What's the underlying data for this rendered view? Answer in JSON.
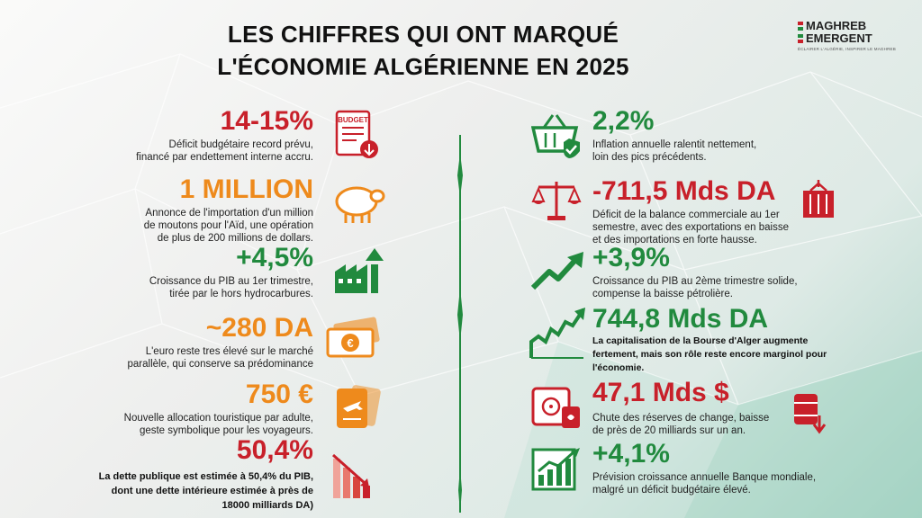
{
  "header": {
    "title_line1": "LES CHIFFRES QUI ONT MARQUÉ",
    "title_line2": "L'ÉCONOMIE ALGÉRIENNE EN 2025"
  },
  "logo": {
    "line1": "MAGHREB",
    "line2": "EMERGENT",
    "tagline": "ÉCLAIRER L'ALGÉRIE, INSPIRER LE MAGHREB"
  },
  "left": [
    {
      "value": "14-15%",
      "desc": [
        "Déficit budgétaire record prévu,",
        "financé par endettement interne accru."
      ],
      "icon": "budget-document-icon",
      "icon_label": "BUDGET",
      "color": "#c8202a"
    },
    {
      "value": "1 MILLION",
      "desc": [
        "Annonce de l'importation d'un million",
        "de moutons pour l'Aïd, une opération",
        "de plus de 200 millions de dollars."
      ],
      "icon": "sheep-icon",
      "color": "#ee8a1c"
    },
    {
      "value": "+4,5%",
      "desc": [
        "Croissance du PIB au 1er trimestre,",
        "tirée par le hors hydrocarbures."
      ],
      "icon": "factory-growth-icon",
      "color": "#218a3e"
    },
    {
      "value": "~280 DA",
      "desc": [
        "L'euro reste tres élevé sur le marché",
        "parallèle, qui conserve sa prédominance"
      ],
      "icon": "euro-banknotes-icon",
      "color": "#ee8a1c"
    },
    {
      "value": "750 €",
      "desc": [
        "Nouvelle allocation touristique par adulte,",
        "geste symbolique pour les voyageurs."
      ],
      "icon": "passport-plane-icon",
      "color": "#ee8a1c"
    },
    {
      "value": "50,4%",
      "desc": [
        "La dette publique est estimée à 50,4% du PIB,",
        "dont une dette intérieure estimée à près de",
        "18000 milliards DA)"
      ],
      "icon": "declining-bars-icon",
      "color": "#c8202a"
    }
  ],
  "right": [
    {
      "value": "2,2%",
      "desc": [
        "Inflation annuelle ralentit nettement,",
        "loin des pics précédents."
      ],
      "icon": "shopping-basket-check-icon",
      "color": "#218a3e"
    },
    {
      "value": "-711,5 Mds DA",
      "desc": [
        "Déficit de la balance commerciale au 1er",
        "semestre, avec des exportations en baisse",
        "et des importations en forte hausse."
      ],
      "icon": "scale-container-icon",
      "color": "#c8202a"
    },
    {
      "value": "+3,9%",
      "desc": [
        "Croissance du PIB au 2ème trimestre solide,",
        "compense la baisse pétrolière."
      ],
      "icon": "trend-up-arrow-icon",
      "color": "#218a3e"
    },
    {
      "value": "744,8 Mds DA",
      "desc": [
        "La capitalisation de la Bourse d'Alger augmente",
        "fertement, mais son rôle reste encore marginol pour",
        "l'économie."
      ],
      "icon": "stock-chart-arrow-icon",
      "color": "#218a3e"
    },
    {
      "value": "47,1 Mds $",
      "desc": [
        "Chute des réserves de change, baisse",
        "de près de 20 milliards sur un an."
      ],
      "icon": "safe-oil-barrel-icon",
      "color": "#c8202a"
    },
    {
      "value": "+4,1%",
      "desc": [
        "Prévision croissance annuelle Banque mondiale,",
        "malgré un déficit budgétaire élevé."
      ],
      "icon": "growth-chart-icon",
      "color": "#218a3e"
    }
  ]
}
